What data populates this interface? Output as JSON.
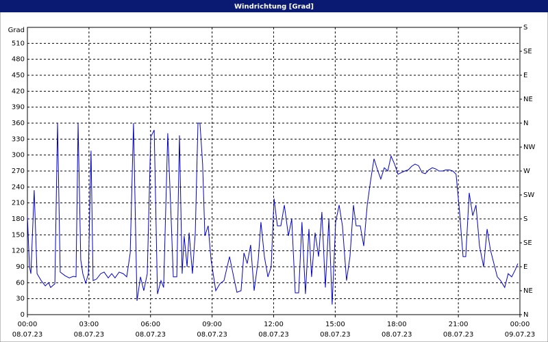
{
  "chart_data": {
    "type": "line",
    "title": "Windrichtung [Grad]",
    "y_label": "Grad",
    "color": "#0000cc",
    "grid": true,
    "xlim": [
      0,
      24
    ],
    "xticks": [
      {
        "value": 0,
        "label": "00:00",
        "date": "08.07.23"
      },
      {
        "value": 3,
        "label": "03:00",
        "date": "08.07.23"
      },
      {
        "value": 6,
        "label": "06:00",
        "date": "08.07.23"
      },
      {
        "value": 9,
        "label": "09:00",
        "date": "08.07.23"
      },
      {
        "value": 12,
        "label": "12:00",
        "date": "08.07.23"
      },
      {
        "value": 15,
        "label": "15:00",
        "date": "08.07.23"
      },
      {
        "value": 18,
        "label": "18:00",
        "date": "08.07.23"
      },
      {
        "value": 21,
        "label": "21:00",
        "date": "08.07.23"
      },
      {
        "value": 24,
        "label": "00:00",
        "date": "09.07.23"
      }
    ],
    "ylim": [
      0,
      540
    ],
    "yticks": [
      0,
      30,
      60,
      90,
      120,
      150,
      180,
      210,
      240,
      270,
      300,
      330,
      360,
      390,
      420,
      450,
      480,
      510
    ],
    "y2lim": [
      0,
      540
    ],
    "y2ticks": [
      {
        "value": 0,
        "label": "N"
      },
      {
        "value": 45,
        "label": "NE"
      },
      {
        "value": 90,
        "label": "E"
      },
      {
        "value": 135,
        "label": "SE"
      },
      {
        "value": 180,
        "label": "S"
      },
      {
        "value": 225,
        "label": "SW"
      },
      {
        "value": 270,
        "label": "W"
      },
      {
        "value": 315,
        "label": "NW"
      },
      {
        "value": 360,
        "label": "N"
      },
      {
        "value": 405,
        "label": "NE"
      },
      {
        "value": 450,
        "label": "E"
      },
      {
        "value": 495,
        "label": "SE"
      },
      {
        "value": 540,
        "label": "S"
      }
    ],
    "x": [
      0,
      0.1,
      0.17,
      0.33,
      0.47,
      0.67,
      0.87,
      1.03,
      1.13,
      1.34,
      1.47,
      1.6,
      1.84,
      2.04,
      2.24,
      2.37,
      2.47,
      2.6,
      2.7,
      2.84,
      2.97,
      3.1,
      3.2,
      3.37,
      3.57,
      3.74,
      3.94,
      4.11,
      4.27,
      4.47,
      4.67,
      4.84,
      5.01,
      5.17,
      5.34,
      5.51,
      5.67,
      5.84,
      6.01,
      6.18,
      6.34,
      6.51,
      6.64,
      6.84,
      6.98,
      7.11,
      7.28,
      7.41,
      7.54,
      7.64,
      7.78,
      7.88,
      8.04,
      8.18,
      8.31,
      8.41,
      8.54,
      8.65,
      8.81,
      8.95,
      9.18,
      9.38,
      9.58,
      9.85,
      10.05,
      10.21,
      10.41,
      10.55,
      10.71,
      10.88,
      11.05,
      11.25,
      11.38,
      11.55,
      11.72,
      11.88,
      12.02,
      12.18,
      12.35,
      12.52,
      12.72,
      12.88,
      13.05,
      13.22,
      13.38,
      13.55,
      13.72,
      13.85,
      14.02,
      14.19,
      14.35,
      14.52,
      14.69,
      14.85,
      15.02,
      15.19,
      15.35,
      15.55,
      15.72,
      15.89,
      16.02,
      16.22,
      16.39,
      16.56,
      16.72,
      16.89,
      17.06,
      17.22,
      17.39,
      17.56,
      17.72,
      17.89,
      18.06,
      18.23,
      18.39,
      18.56,
      18.73,
      18.89,
      19.06,
      19.23,
      19.39,
      19.56,
      19.73,
      19.89,
      20.06,
      20.23,
      20.39,
      20.56,
      20.73,
      20.89,
      21.06,
      21.23,
      21.36,
      21.53,
      21.7,
      21.86,
      22.03,
      22.23,
      22.4,
      22.56,
      22.73,
      22.9,
      23.06,
      23.26,
      23.43,
      23.6,
      23.77,
      23.9
    ],
    "values": [
      186,
      90,
      77,
      234,
      77,
      64,
      54,
      60,
      51,
      58,
      360,
      80,
      73,
      69,
      72,
      71,
      360,
      103,
      77,
      59,
      77,
      308,
      64,
      67,
      77,
      80,
      69,
      77,
      69,
      80,
      77,
      71,
      116,
      360,
      26,
      71,
      45,
      77,
      334,
      347,
      39,
      64,
      51,
      341,
      206,
      71,
      71,
      337,
      77,
      148,
      90,
      154,
      77,
      154,
      360,
      360,
      283,
      148,
      167,
      103,
      45,
      58,
      64,
      109,
      71,
      42,
      45,
      116,
      96,
      131,
      45,
      103,
      174,
      109,
      71,
      90,
      218,
      167,
      167,
      206,
      148,
      180,
      41,
      41,
      174,
      39,
      161,
      71,
      154,
      109,
      193,
      51,
      180,
      19,
      174,
      206,
      167,
      64,
      109,
      206,
      167,
      167,
      129,
      206,
      251,
      293,
      272,
      255,
      276,
      270,
      298,
      283,
      264,
      267,
      270,
      272,
      279,
      283,
      280,
      267,
      265,
      272,
      276,
      274,
      270,
      270,
      272,
      272,
      270,
      264,
      193,
      109,
      109,
      229,
      186,
      206,
      129,
      90,
      161,
      122,
      96,
      71,
      64,
      51,
      77,
      71,
      84,
      96
    ]
  }
}
